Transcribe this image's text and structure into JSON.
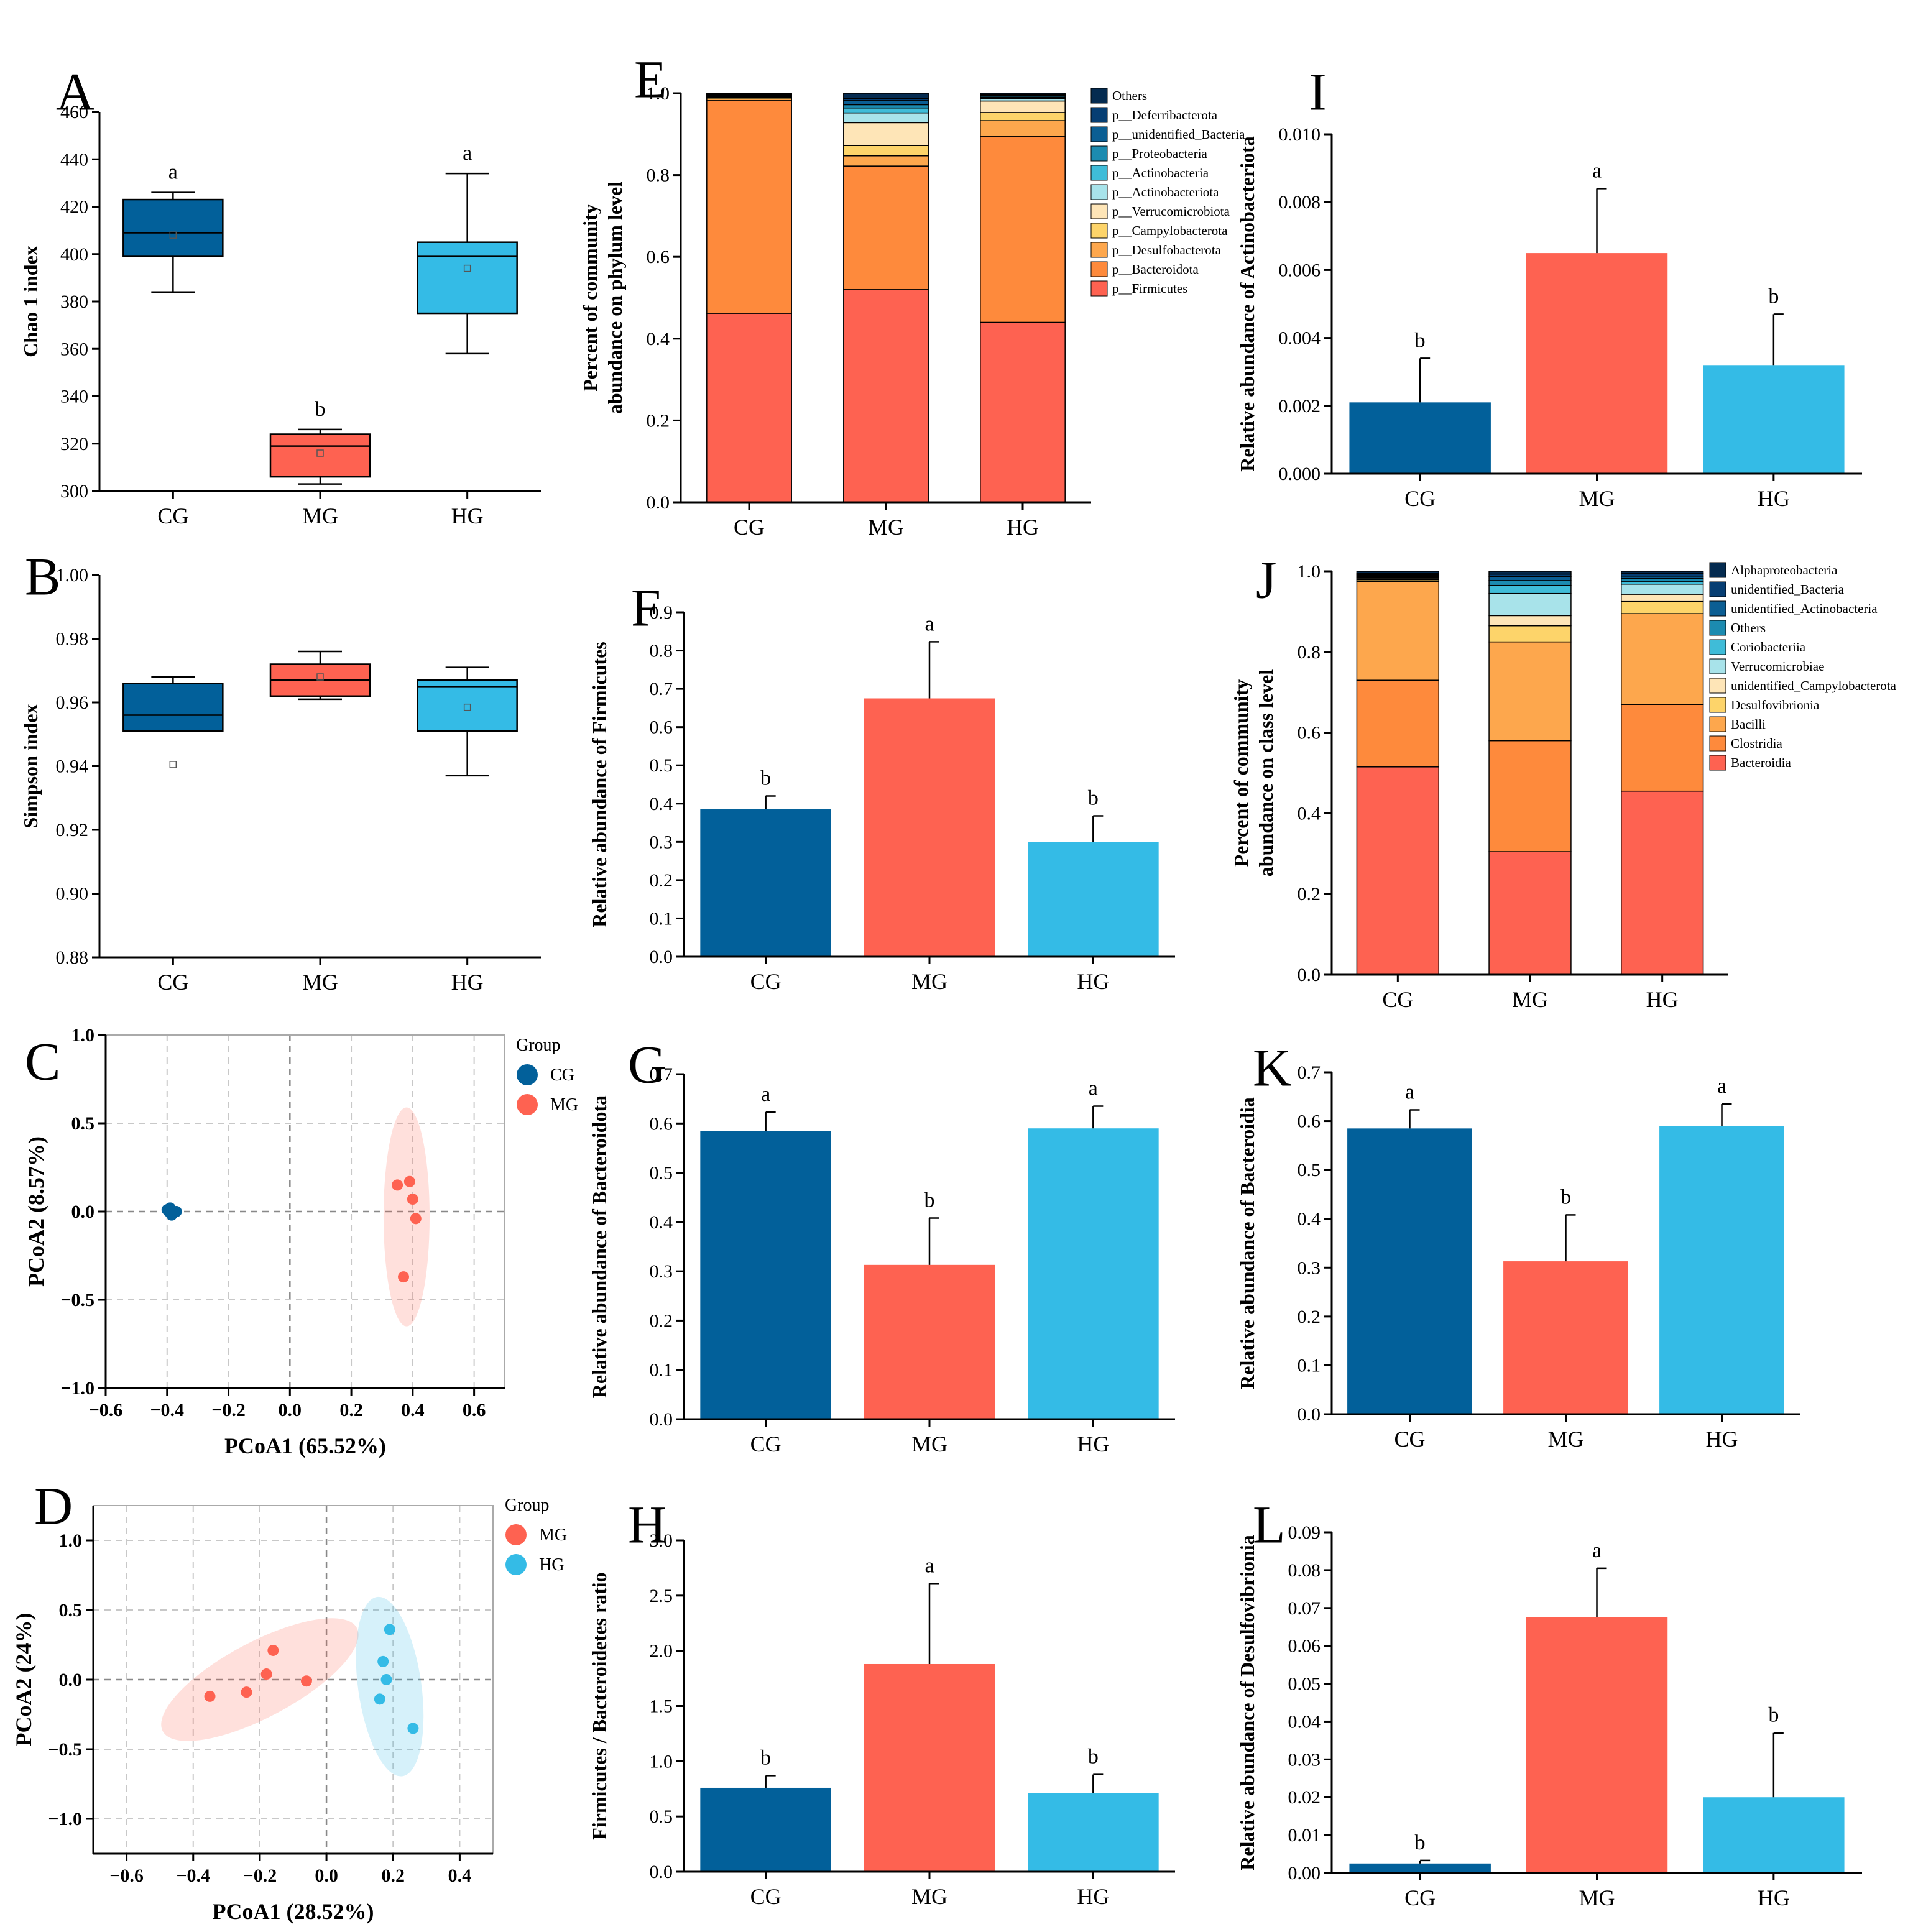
{
  "colors": {
    "CG": "#02609A",
    "MG": "#FE6251",
    "HG": "#34BBE6",
    "stack": [
      "#FE6251",
      "#FE8A3C",
      "#FDA74D",
      "#FDD46A",
      "#FEE5B7",
      "#A8E3EA",
      "#3FBCD8",
      "#1C8BB0",
      "#0B5E93",
      "#063E73",
      "#052B50"
    ]
  },
  "chart_data": [
    {
      "panel": "A",
      "type": "box",
      "ylabel": "Chao 1 index",
      "ylim": [
        300,
        460
      ],
      "yticks": [
        300,
        320,
        340,
        360,
        380,
        400,
        420,
        440,
        460
      ],
      "ytick_labels": [
        "300",
        "320",
        "340",
        "360",
        "380",
        "400",
        "420",
        "440",
        "460"
      ],
      "categories": [
        "CG",
        "MG",
        "HG"
      ],
      "boxes": [
        {
          "group": "CG",
          "min": 384,
          "q1": 399,
          "median": 409,
          "q3": 423,
          "max": 426,
          "mean": 408,
          "sig": "a"
        },
        {
          "group": "MG",
          "min": 303,
          "q1": 306,
          "median": 319,
          "q3": 324,
          "max": 326,
          "mean": 316,
          "sig": "b"
        },
        {
          "group": "HG",
          "min": 358,
          "q1": 375,
          "median": 399,
          "q3": 405,
          "max": 434,
          "mean": 394,
          "sig": "a"
        }
      ]
    },
    {
      "panel": "B",
      "type": "box",
      "ylabel": "Simpson index",
      "ylim": [
        0.88,
        1.0
      ],
      "yticks": [
        0.88,
        0.9,
        0.92,
        0.94,
        0.96,
        0.98,
        1.0
      ],
      "ytick_labels": [
        "0.88",
        "0.90",
        "0.92",
        "0.94",
        "0.96",
        "0.98",
        "1.00"
      ],
      "categories": [
        "CG",
        "MG",
        "HG"
      ],
      "boxes": [
        {
          "group": "CG",
          "min": 0.951,
          "q1": 0.951,
          "median": 0.956,
          "q3": 0.966,
          "max": 0.968,
          "mean": 0.9405,
          "sig": ""
        },
        {
          "group": "MG",
          "min": 0.961,
          "q1": 0.962,
          "median": 0.967,
          "q3": 0.972,
          "max": 0.976,
          "mean": 0.968,
          "sig": ""
        },
        {
          "group": "HG",
          "min": 0.937,
          "q1": 0.951,
          "median": 0.965,
          "q3": 0.967,
          "max": 0.971,
          "mean": 0.9585,
          "sig": ""
        }
      ]
    },
    {
      "panel": "C",
      "type": "scatter",
      "xlabel": "PCoA1 (65.52%)",
      "ylabel": "PCoA2 (8.57%)",
      "xlim": [
        -0.6,
        0.7
      ],
      "ylim": [
        -1.0,
        1.0
      ],
      "xticks": [
        -0.6,
        -0.4,
        -0.2,
        0.0,
        0.2,
        0.4,
        0.6
      ],
      "xtick_labels": [
        "−0.6",
        "−0.4",
        "−0.2",
        "0.0",
        "0.2",
        "0.4",
        "0.6"
      ],
      "yticks": [
        -1.0,
        -0.5,
        0.0,
        0.5,
        1.0
      ],
      "ytick_labels": [
        "−1.0",
        "−0.5",
        "0.0",
        "0.5",
        "1.0"
      ],
      "legend_title": "Group",
      "series": [
        {
          "name": "CG",
          "points": [
            [
              -0.39,
              0.02
            ],
            [
              -0.385,
              -0.02
            ],
            [
              -0.395,
              0.0
            ],
            [
              -0.37,
              0.0
            ],
            [
              -0.4,
              0.01
            ]
          ]
        },
        {
          "name": "MG",
          "points": [
            [
              0.35,
              0.15
            ],
            [
              0.39,
              0.17
            ],
            [
              0.4,
              0.07
            ],
            [
              0.41,
              -0.04
            ],
            [
              0.37,
              -0.37
            ]
          ]
        }
      ],
      "ellipses": [
        {
          "name": "MG",
          "cx": 0.38,
          "cy": -0.03,
          "rx": 0.075,
          "ry": 0.62
        }
      ]
    },
    {
      "panel": "D",
      "type": "scatter",
      "xlabel": "PCoA1 (28.52%)",
      "ylabel": "PCoA2 (24%)",
      "xlim": [
        -0.7,
        0.5
      ],
      "ylim": [
        -1.25,
        1.25
      ],
      "xticks": [
        -0.6,
        -0.4,
        -0.2,
        0.0,
        0.2,
        0.4
      ],
      "xtick_labels": [
        "−0.6",
        "−0.4",
        "−0.2",
        "0.0",
        "0.2",
        "0.4"
      ],
      "yticks": [
        -1.0,
        -0.5,
        0.0,
        0.5,
        1.0
      ],
      "ytick_labels": [
        "−1.0",
        "−0.5",
        "0.0",
        "0.5",
        "1.0"
      ],
      "legend_title": "Group",
      "series": [
        {
          "name": "MG",
          "points": [
            [
              -0.35,
              -0.12
            ],
            [
              -0.24,
              -0.09
            ],
            [
              -0.18,
              0.04
            ],
            [
              -0.16,
              0.21
            ],
            [
              -0.06,
              -0.01
            ]
          ]
        },
        {
          "name": "HG",
          "points": [
            [
              0.19,
              0.36
            ],
            [
              0.17,
              0.13
            ],
            [
              0.18,
              0.0
            ],
            [
              0.16,
              -0.14
            ],
            [
              0.26,
              -0.35
            ]
          ]
        }
      ],
      "ellipses": [
        {
          "name": "MG",
          "cx": -0.2,
          "cy": 0.0,
          "rx": 0.33,
          "ry": 0.27,
          "rot": -28
        },
        {
          "name": "HG",
          "cx": 0.19,
          "cy": -0.05,
          "rx": 0.095,
          "ry": 0.65,
          "rot": -8
        }
      ]
    },
    {
      "panel": "E",
      "type": "stacked_bar",
      "ylabel": "Percent of community abundance on phylum level",
      "ylim": [
        0,
        1.0
      ],
      "yticks": [
        0,
        0.2,
        0.4,
        0.6,
        0.8,
        1.0
      ],
      "ytick_labels": [
        "0.0",
        "0.2",
        "0.4",
        "0.6",
        "0.8",
        "1.0"
      ],
      "categories": [
        "CG",
        "MG",
        "HG"
      ],
      "series": [
        {
          "name": "p__Firmicutes",
          "values": [
            0.462,
            0.52,
            0.44
          ]
        },
        {
          "name": "p__Bacteroidota",
          "values": [
            0.52,
            0.302,
            0.455
          ]
        },
        {
          "name": "p__Desulfobacterota",
          "values": [
            0.004,
            0.025,
            0.038
          ]
        },
        {
          "name": "p__Campylobacterota",
          "values": [
            0.003,
            0.025,
            0.02
          ]
        },
        {
          "name": "p__Verrucomicrobiota",
          "values": [
            0.002,
            0.056,
            0.028
          ]
        },
        {
          "name": "p__Actinobacteriota",
          "values": [
            0.002,
            0.024,
            0.006
          ]
        },
        {
          "name": "p__Actinobacteria",
          "values": [
            0.001,
            0.012,
            0.003
          ]
        },
        {
          "name": "p__Proteobacteria",
          "values": [
            0.002,
            0.008,
            0.003
          ]
        },
        {
          "name": "p__unidentified_Bacteria",
          "values": [
            0.001,
            0.01,
            0.002
          ]
        },
        {
          "name": "p__Deferribacterota",
          "values": [
            0.001,
            0.005,
            0.002
          ]
        },
        {
          "name": "Others",
          "values": [
            0.002,
            0.013,
            0.003
          ]
        }
      ],
      "legend_order": [
        "Others",
        "p__Deferribacterota",
        "p__unidentified_Bacteria",
        "p__Proteobacteria",
        "p__Actinobacteria",
        "p__Actinobacteriota",
        "p__Verrucomicrobiota",
        "p__Campylobacterota",
        "p__Desulfobacterota",
        "p__Bacteroidota",
        "p__Firmicutes"
      ]
    },
    {
      "panel": "F",
      "type": "bar",
      "ylabel": "Relative abundance of Firmicutes",
      "ylim": [
        0,
        0.9
      ],
      "yticks": [
        0,
        0.1,
        0.2,
        0.3,
        0.4,
        0.5,
        0.6,
        0.7,
        0.8,
        0.9
      ],
      "ytick_labels": [
        "0.0",
        "0.1",
        "0.2",
        "0.3",
        "0.4",
        "0.5",
        "0.6",
        "0.7",
        "0.8",
        "0.9"
      ],
      "categories": [
        "CG",
        "MG",
        "HG"
      ],
      "values": [
        0.385,
        0.675,
        0.3
      ],
      "errors": [
        0.035,
        0.148,
        0.068
      ],
      "sig": [
        "b",
        "a",
        "b"
      ]
    },
    {
      "panel": "G",
      "type": "bar",
      "ylabel": "Relative abundance of Bacteroidota",
      "ylim": [
        0,
        0.7
      ],
      "yticks": [
        0,
        0.1,
        0.2,
        0.3,
        0.4,
        0.5,
        0.6,
        0.7
      ],
      "ytick_labels": [
        "0.0",
        "0.1",
        "0.2",
        "0.3",
        "0.4",
        "0.5",
        "0.6",
        "0.7"
      ],
      "categories": [
        "CG",
        "MG",
        "HG"
      ],
      "values": [
        0.585,
        0.313,
        0.59
      ],
      "errors": [
        0.038,
        0.095,
        0.045
      ],
      "sig": [
        "a",
        "b",
        "a"
      ]
    },
    {
      "panel": "H",
      "type": "bar",
      "ylabel": "Firmicutes / Bacteroidetes ratio",
      "ylim": [
        0,
        3.0
      ],
      "yticks": [
        0,
        0.5,
        1.0,
        1.5,
        2.0,
        2.5,
        3.0
      ],
      "ytick_labels": [
        "0.0",
        "0.5",
        "1.0",
        "1.5",
        "2.0",
        "2.5",
        "3.0"
      ],
      "categories": [
        "CG",
        "MG",
        "HG"
      ],
      "values": [
        0.76,
        1.88,
        0.71
      ],
      "errors": [
        0.11,
        0.73,
        0.17
      ],
      "sig": [
        "b",
        "a",
        "b"
      ]
    },
    {
      "panel": "I",
      "type": "bar",
      "ylabel": "Relative abundance of Actinobacteriota",
      "ylim": [
        0,
        0.01
      ],
      "yticks": [
        0,
        0.002,
        0.004,
        0.006,
        0.008,
        0.01
      ],
      "ytick_labels": [
        "0.000",
        "0.002",
        "0.004",
        "0.006",
        "0.008",
        "0.010"
      ],
      "categories": [
        "CG",
        "MG",
        "HG"
      ],
      "values": [
        0.0021,
        0.0065,
        0.0032
      ],
      "errors": [
        0.0013,
        0.0019,
        0.0015
      ],
      "sig": [
        "b",
        "a",
        "b"
      ]
    },
    {
      "panel": "J",
      "type": "stacked_bar",
      "ylabel": "Percent of community abundance on class level",
      "ylim": [
        0,
        1.0
      ],
      "yticks": [
        0,
        0.2,
        0.4,
        0.6,
        0.8,
        1.0
      ],
      "ytick_labels": [
        "0.0",
        "0.2",
        "0.4",
        "0.6",
        "0.8",
        "1.0"
      ],
      "categories": [
        "CG",
        "MG",
        "HG"
      ],
      "series": [
        {
          "name": "Bacteroidia",
          "values": [
            0.515,
            0.305,
            0.455
          ]
        },
        {
          "name": "Clostridia",
          "values": [
            0.215,
            0.275,
            0.215
          ]
        },
        {
          "name": "Bacilli",
          "values": [
            0.245,
            0.245,
            0.225
          ]
        },
        {
          "name": "Desulfovibrionia",
          "values": [
            0.004,
            0.04,
            0.03
          ]
        },
        {
          "name": "unidentified_Campylobacterota",
          "values": [
            0.004,
            0.025,
            0.018
          ]
        },
        {
          "name": "Verrucomicrobiae",
          "values": [
            0.002,
            0.055,
            0.025
          ]
        },
        {
          "name": "Coriobacteriia",
          "values": [
            0.002,
            0.02,
            0.006
          ]
        },
        {
          "name": "Others",
          "values": [
            0.003,
            0.012,
            0.008
          ]
        },
        {
          "name": "unidentified_Actinobacteria",
          "values": [
            0.002,
            0.01,
            0.006
          ]
        },
        {
          "name": "unidentified_Bacteria",
          "values": [
            0.003,
            0.006,
            0.006
          ]
        },
        {
          "name": "Alphaproteobacteria",
          "values": [
            0.005,
            0.007,
            0.006
          ]
        }
      ],
      "legend_order": [
        "Alphaproteobacteria",
        "unidentified_Bacteria",
        "unidentified_Actinobacteria",
        "Others",
        "Coriobacteriia",
        "Verrucomicrobiae",
        "unidentified_Campylobacterota",
        "Desulfovibrionia",
        "Bacilli",
        "Clostridia",
        "Bacteroidia"
      ]
    },
    {
      "panel": "K",
      "type": "bar",
      "ylabel": "Relative abundance of Bacteroidia",
      "ylim": [
        0,
        0.7
      ],
      "yticks": [
        0,
        0.1,
        0.2,
        0.3,
        0.4,
        0.5,
        0.6,
        0.7
      ],
      "ytick_labels": [
        "0.0",
        "0.1",
        "0.2",
        "0.3",
        "0.4",
        "0.5",
        "0.6",
        "0.7"
      ],
      "categories": [
        "CG",
        "MG",
        "HG"
      ],
      "values": [
        0.585,
        0.313,
        0.59
      ],
      "errors": [
        0.038,
        0.095,
        0.045
      ],
      "sig": [
        "a",
        "b",
        "a"
      ]
    },
    {
      "panel": "L",
      "type": "bar",
      "ylabel": "Relative abundance of Desulfovibrionia",
      "ylim": [
        0,
        0.09
      ],
      "yticks": [
        0,
        0.01,
        0.02,
        0.03,
        0.04,
        0.05,
        0.06,
        0.07,
        0.08,
        0.09
      ],
      "ytick_labels": [
        "0.00",
        "0.01",
        "0.02",
        "0.03",
        "0.04",
        "0.05",
        "0.06",
        "0.07",
        "0.08",
        "0.09"
      ],
      "categories": [
        "CG",
        "MG",
        "HG"
      ],
      "values": [
        0.0025,
        0.0675,
        0.02
      ],
      "errors": [
        0.0008,
        0.013,
        0.017
      ],
      "sig": [
        "b",
        "a",
        "b"
      ]
    }
  ]
}
